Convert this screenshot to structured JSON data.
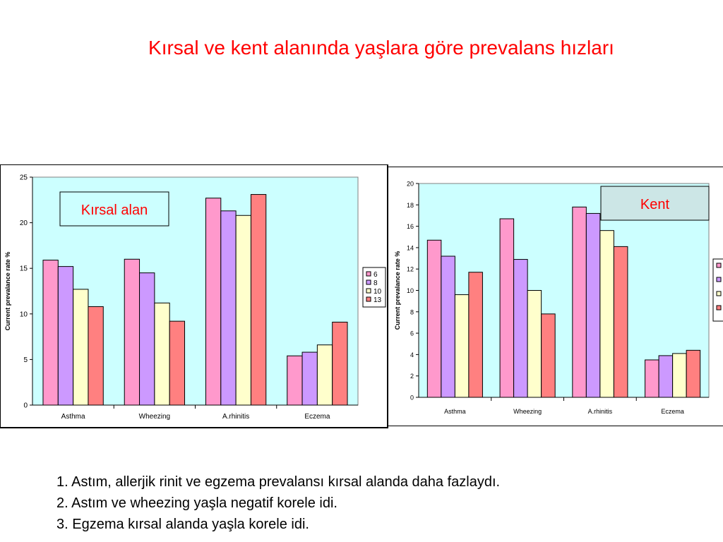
{
  "slide": {
    "title": "Kırsal ve kent alanında yaşlara göre prevalans hızları",
    "findings": [
      "1. Astım, allerjik rinit ve egzema prevalansı kırsal alanda daha fazlaydı.",
      "2. Astım ve wheezing yaşla negatif korele idi.",
      "3. Egzema kırsal alanda yaşla korele idi."
    ]
  },
  "chart_data": [
    {
      "type": "bar",
      "title": "Kırsal alan",
      "xlabel": "",
      "ylabel": "Current prevalance rate %",
      "categories": [
        "Asthma",
        "Wheezing",
        "A.rhinitis",
        "Eczema"
      ],
      "series": [
        {
          "name": "6",
          "values": [
            15.9,
            16.0,
            22.7,
            5.4
          ],
          "color": "#ff99cc"
        },
        {
          "name": "8",
          "values": [
            15.2,
            14.5,
            21.3,
            5.8
          ],
          "color": "#cc99ff"
        },
        {
          "name": "10",
          "values": [
            12.7,
            11.2,
            20.8,
            6.6
          ],
          "color": "#ffffcc"
        },
        {
          "name": "13",
          "values": [
            10.8,
            9.2,
            23.1,
            9.1
          ],
          "color": "#ff8080"
        }
      ],
      "ylim": [
        0,
        25
      ],
      "yticks": [
        "0",
        "5",
        "10",
        "15",
        "20",
        "25"
      ],
      "grid": false,
      "plot_background": "#ccffff",
      "legend_position": "right"
    },
    {
      "type": "bar",
      "title": "Kent",
      "xlabel": "",
      "ylabel": "Current prevalance rate %",
      "categories": [
        "Asthma",
        "Wheezing",
        "A.rhinitis",
        "Eczema"
      ],
      "series": [
        {
          "values": [
            14.7,
            16.7,
            17.8,
            3.5
          ],
          "color": "#ff99cc"
        },
        {
          "values": [
            13.2,
            12.9,
            17.2,
            3.9
          ],
          "color": "#cc99ff"
        },
        {
          "values": [
            9.6,
            10.0,
            15.6,
            4.1
          ],
          "color": "#ffffcc"
        },
        {
          "values": [
            11.7,
            7.8,
            14.1,
            4.4
          ],
          "color": "#ff8080"
        }
      ],
      "ylim": [
        0,
        20
      ],
      "yticks": [
        "0",
        "2",
        "4",
        "6",
        "8",
        "10",
        "12",
        "14",
        "16",
        "18",
        "20"
      ],
      "grid": false,
      "plot_background": "#ccffff",
      "legend_position": "right"
    }
  ]
}
